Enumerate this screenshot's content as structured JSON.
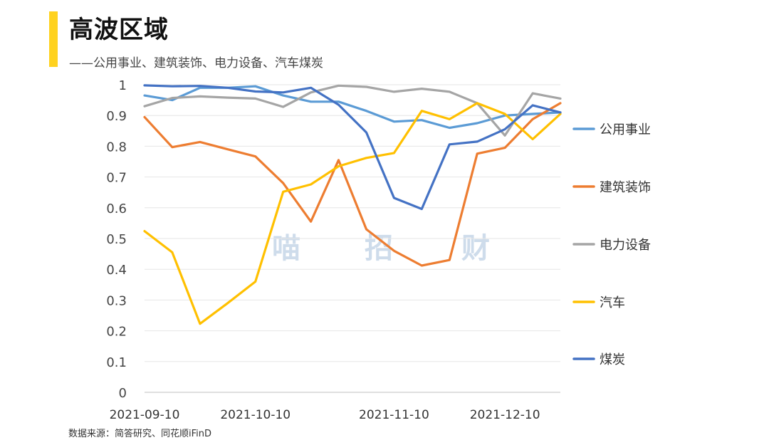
{
  "header": {
    "title": "高波区域",
    "subtitle": "——公用事业、建筑装饰、电力设备、汽车煤炭",
    "accent_color": "#FFD21F"
  },
  "source_text": "数据来源：简答研究、同花顺iFinD",
  "watermark": [
    "喵",
    "招",
    "财"
  ],
  "chart_data": {
    "type": "line",
    "title": "",
    "xlabel": "",
    "ylabel": "",
    "ylim": [
      0,
      1
    ],
    "yticks": [
      "0",
      "0.1",
      "0.2",
      "0.3",
      "0.4",
      "0.5",
      "0.6",
      "0.7",
      "0.8",
      "0.9",
      "1"
    ],
    "xtick_labels": [
      "2021-09-10",
      "2021-10-10",
      "2021-11-10",
      "2021-12-10"
    ],
    "xtick_positions": [
      0,
      4,
      9,
      13
    ],
    "grid": "horizontal",
    "legend_position": "right",
    "x": [
      0,
      1,
      2,
      3,
      4,
      5,
      6,
      7,
      8,
      9,
      10,
      11,
      12,
      13,
      14,
      15
    ],
    "series": [
      {
        "name": "公用事业",
        "color": "#5B9BD5",
        "values": [
          0.965,
          0.95,
          0.99,
          0.99,
          0.995,
          0.965,
          0.945,
          0.945,
          0.915,
          0.88,
          0.885,
          0.86,
          0.875,
          0.9,
          0.905,
          0.91
        ]
      },
      {
        "name": "建筑装饰",
        "color": "#ED7D31",
        "values": [
          0.895,
          0.797,
          0.814,
          0.79,
          0.767,
          0.68,
          0.555,
          0.755,
          0.53,
          0.46,
          0.412,
          0.43,
          0.776,
          0.795,
          0.888,
          0.94
        ]
      },
      {
        "name": "电力设备",
        "color": "#A5A5A5",
        "values": [
          0.93,
          0.957,
          0.962,
          0.958,
          0.955,
          0.928,
          0.975,
          0.997,
          0.993,
          0.977,
          0.987,
          0.977,
          0.94,
          0.835,
          0.972,
          0.955
        ]
      },
      {
        "name": "汽车",
        "color": "#FFC000",
        "values": [
          0.524,
          0.455,
          0.223,
          0.29,
          0.36,
          0.652,
          0.676,
          0.735,
          0.762,
          0.778,
          0.915,
          0.888,
          0.94,
          0.905,
          0.823,
          0.905
        ]
      },
      {
        "name": "煤炭",
        "color": "#4472C4",
        "values": [
          0.998,
          0.995,
          0.996,
          0.99,
          0.978,
          0.975,
          0.99,
          0.935,
          0.845,
          0.632,
          0.596,
          0.806,
          0.815,
          0.855,
          0.933,
          0.91
        ]
      }
    ]
  }
}
